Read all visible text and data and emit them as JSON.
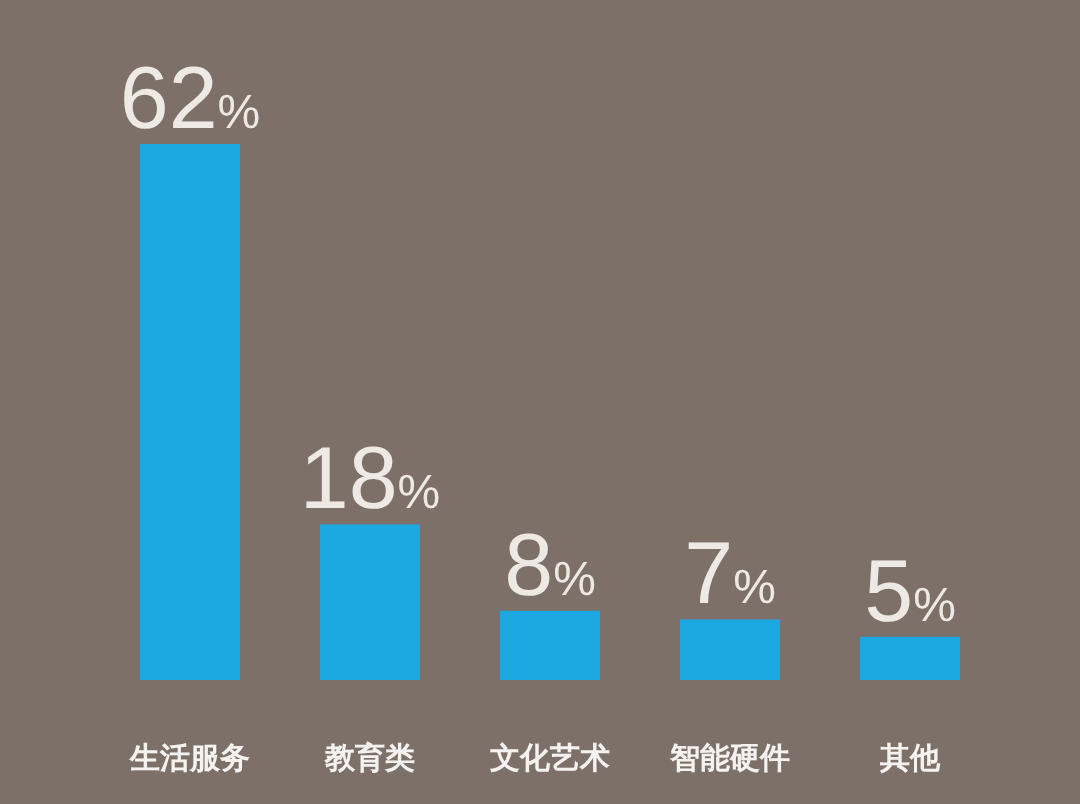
{
  "chart_data": {
    "type": "bar",
    "categories": [
      "生活服务",
      "教育类",
      "文化艺术",
      "智能硬件",
      "其他"
    ],
    "values": [
      62,
      18,
      8,
      7,
      5
    ],
    "value_labels": [
      "62%",
      "18%",
      "8%",
      "7%",
      "5%"
    ],
    "color": "#1ba8e1"
  }
}
